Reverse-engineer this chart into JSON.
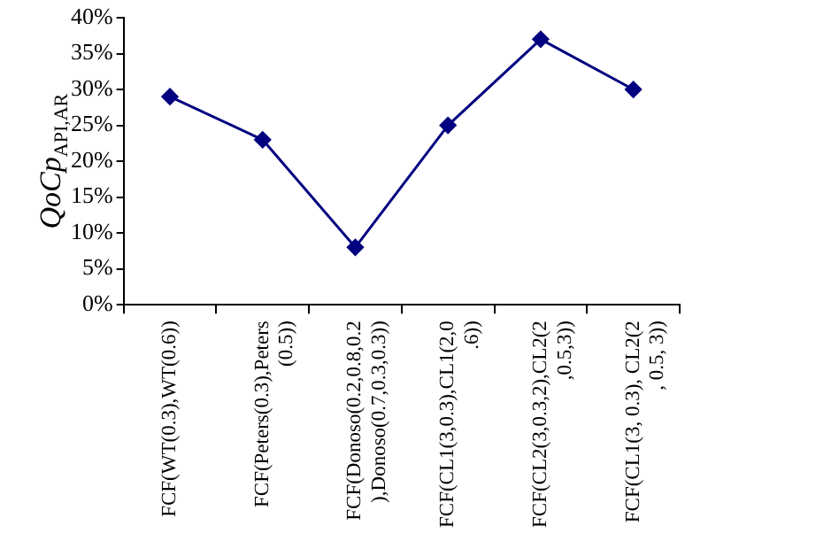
{
  "chart_data": {
    "type": "line",
    "ylabel": "QoCp$_{API,AR}$",
    "categories": [
      "FCF(WT(0.3),WT(0.6))",
      "FCF(Peters(0.3),Peters(0.5))",
      "FCF(Donoso(0.2,0.8,0.2),Donoso(0.7,0.3,0.3))",
      "FCF(CL1(3,0.3),CL1(2,0.6))",
      "FCF(CL2(3,0.3,2),CL2(2,0.5,3))",
      "FCF(CL1(3, 0.3), CL2(2, 0.5, 3))"
    ],
    "series": [
      {
        "color": "#000080",
        "values": [
          29,
          23,
          8,
          25,
          37,
          30
        ]
      }
    ],
    "ylim": [
      0,
      40
    ],
    "yticks": [
      {
        "value": 0,
        "label": "0%"
      },
      {
        "value": 5,
        "label": "5%"
      },
      {
        "value": 10,
        "label": "10%"
      },
      {
        "value": 15,
        "label": "15%"
      },
      {
        "value": 20,
        "label": "20%"
      },
      {
        "value": 25,
        "label": "25%"
      },
      {
        "value": 30,
        "label": "30%"
      },
      {
        "value": 35,
        "label": "35%"
      },
      {
        "value": 40,
        "label": "40%"
      }
    ],
    "grid": false,
    "legend": false,
    "marker": "diamond",
    "line_style": "solid"
  }
}
